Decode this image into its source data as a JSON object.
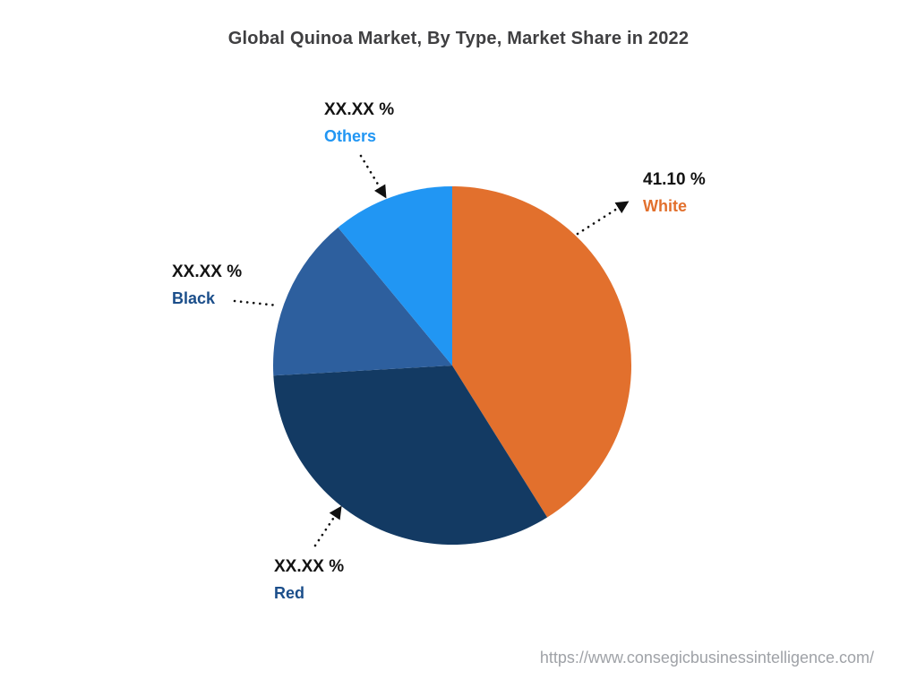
{
  "title": "Global Quinoa Market, By Type, Market Share in 2022",
  "footer_url": "https://www.consegicbusinessintelligence.com/",
  "chart_data": {
    "type": "pie",
    "title": "Global Quinoa Market, By Type, Market Share in 2022",
    "direction": "clockwise",
    "start_angle_deg": 0,
    "legend_position": "callout-labels",
    "note": "Only the White slice shows a numeric share; other slice values are masked as XX.XX % in the source image. value_pct for masked slices is estimated from arc angles.",
    "slices": [
      {
        "label": "White",
        "display_value": "41.10 %",
        "value_pct": 41.1,
        "color": "#E2702D",
        "label_color": "#E2702D"
      },
      {
        "label": "Red",
        "display_value": "XX.XX %",
        "value_pct": 33.0,
        "color": "#133A63",
        "label_color": "#1B4E8A"
      },
      {
        "label": "Black",
        "display_value": "XX.XX %",
        "value_pct": 14.9,
        "color": "#2D5F9E",
        "label_color": "#1B4E8A"
      },
      {
        "label": "Others",
        "display_value": "XX.XX %",
        "value_pct": 11.0,
        "color": "#2196F3",
        "label_color": "#2196F3"
      }
    ]
  }
}
